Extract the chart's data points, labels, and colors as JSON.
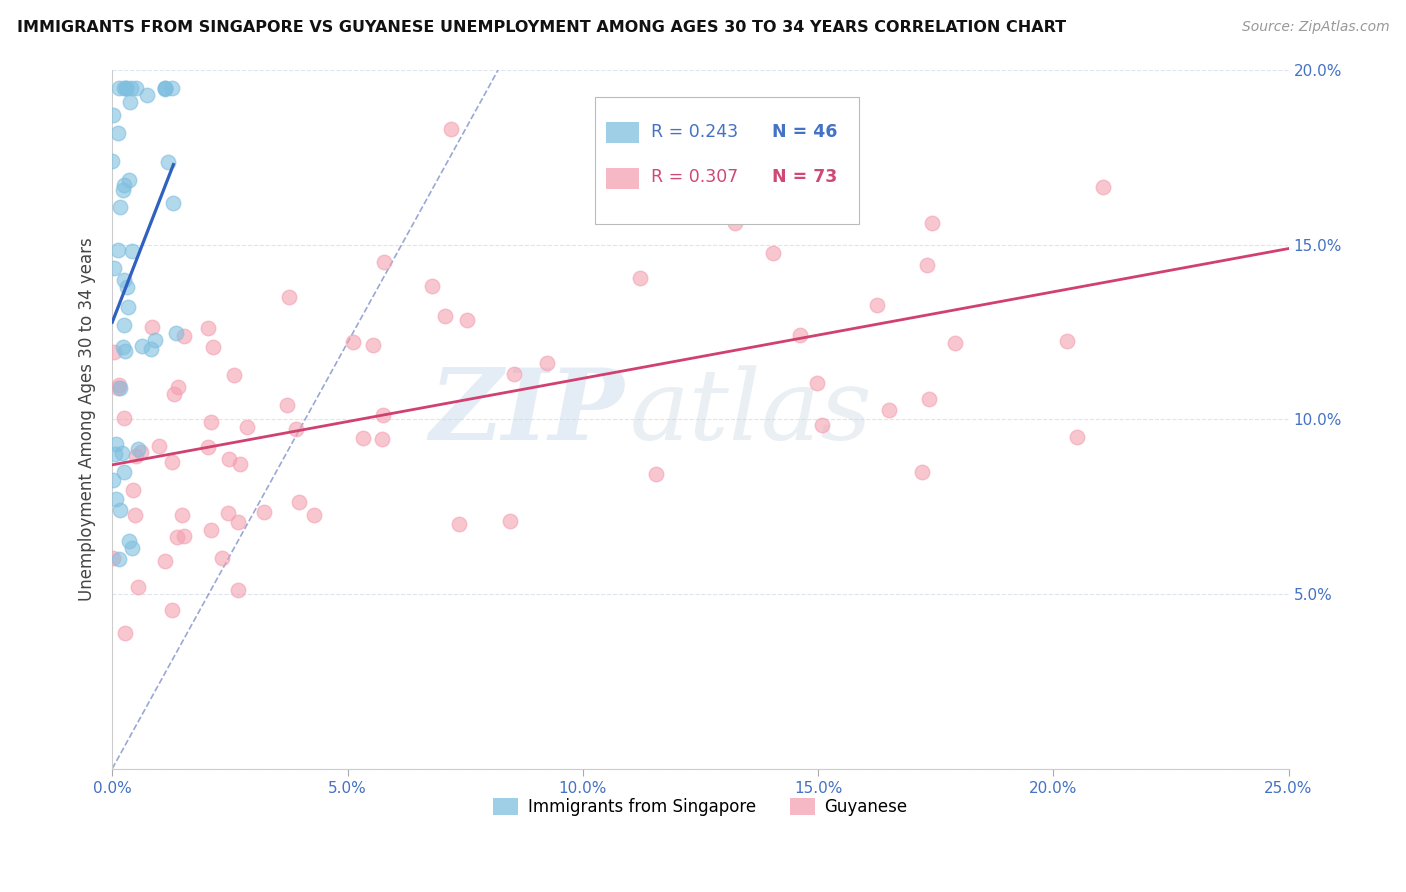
{
  "title": "IMMIGRANTS FROM SINGAPORE VS GUYANESE UNEMPLOYMENT AMONG AGES 30 TO 34 YEARS CORRELATION CHART",
  "source": "Source: ZipAtlas.com",
  "ylabel": "Unemployment Among Ages 30 to 34 years",
  "xlim": [
    0.0,
    0.25
  ],
  "ylim": [
    0.0,
    0.2
  ],
  "xticks": [
    0.0,
    0.05,
    0.1,
    0.15,
    0.2,
    0.25
  ],
  "yticks": [
    0.0,
    0.05,
    0.1,
    0.15,
    0.2
  ],
  "xtick_labels": [
    "0.0%",
    "5.0%",
    "10.0%",
    "15.0%",
    "20.0%",
    "25.0%"
  ],
  "ytick_labels_right": [
    "",
    "5.0%",
    "10.0%",
    "15.0%",
    "20.0%"
  ],
  "singapore_color": "#7fbfdf",
  "guyanese_color": "#f4a0b0",
  "singapore_line_color": "#3060c0",
  "guyanese_line_color": "#d04070",
  "diagonal_color": "#8899cc",
  "watermark_zip": "ZIP",
  "watermark_atlas": "atlas",
  "legend_r_sing": "R = 0.243",
  "legend_n_sing": "N = 46",
  "legend_r_guy": "R = 0.307",
  "legend_n_guy": "N = 73",
  "legend_color_sing": "#4472c4",
  "legend_color_guy": "#d04878",
  "grid_color": "#dde5f0",
  "background_color": "#ffffff"
}
